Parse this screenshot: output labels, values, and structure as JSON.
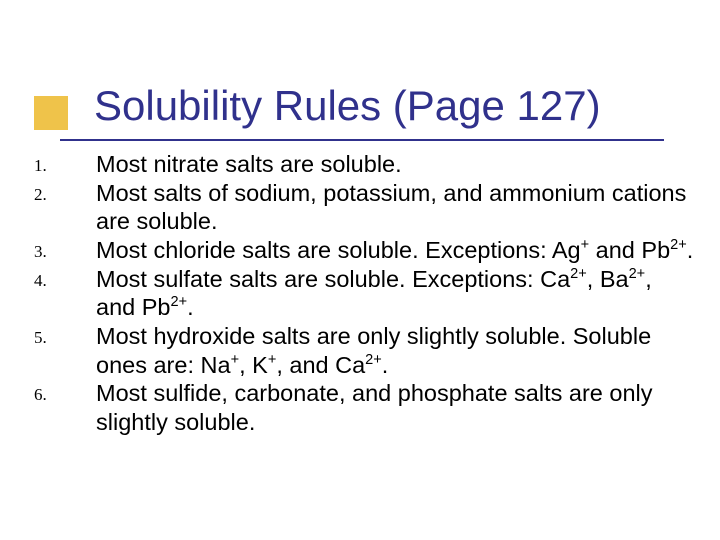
{
  "title": "Solubility Rules (Page 127)",
  "style": {
    "background_color": "#ffffff",
    "accent_box_color": "#efc34a",
    "title_color": "#30318c",
    "underline_color": "#30318c",
    "body_text_color": "#000000",
    "title_fontsize": 42,
    "body_fontsize": 23.5,
    "number_fontsize": 17,
    "title_font": "Verdana",
    "body_font": "Verdana",
    "number_font": "Times New Roman",
    "slide_width": 720,
    "slide_height": 540
  },
  "items": [
    {
      "n": "1.",
      "text": "Most nitrate salts are soluble."
    },
    {
      "n": "2.",
      "text": "Most salts of sodium, potassium, and ammonium cations are soluble."
    },
    {
      "n": "3.",
      "pre": "Most chloride salts are soluble.  Exceptions: Ag",
      "sup1": "+",
      "mid1": " and Pb",
      "sup2": "2+",
      "post": "."
    },
    {
      "n": "4.",
      "pre": "Most sulfate salts are soluble.  Exceptions: Ca",
      "sup1": "2+",
      "mid1": ", Ba",
      "sup2": "2+",
      "mid2": ", and Pb",
      "sup3": "2+",
      "post": "."
    },
    {
      "n": "5.",
      "pre": "Most hydroxide salts are only slightly soluble.  Soluble ones are: Na",
      "sup1": "+",
      "mid1": ", K",
      "sup2": "+",
      "mid2": ", and Ca",
      "sup3": "2+",
      "post": "."
    },
    {
      "n": "6.",
      "text": "Most sulfide, carbonate, and phosphate salts are only slightly soluble."
    }
  ]
}
